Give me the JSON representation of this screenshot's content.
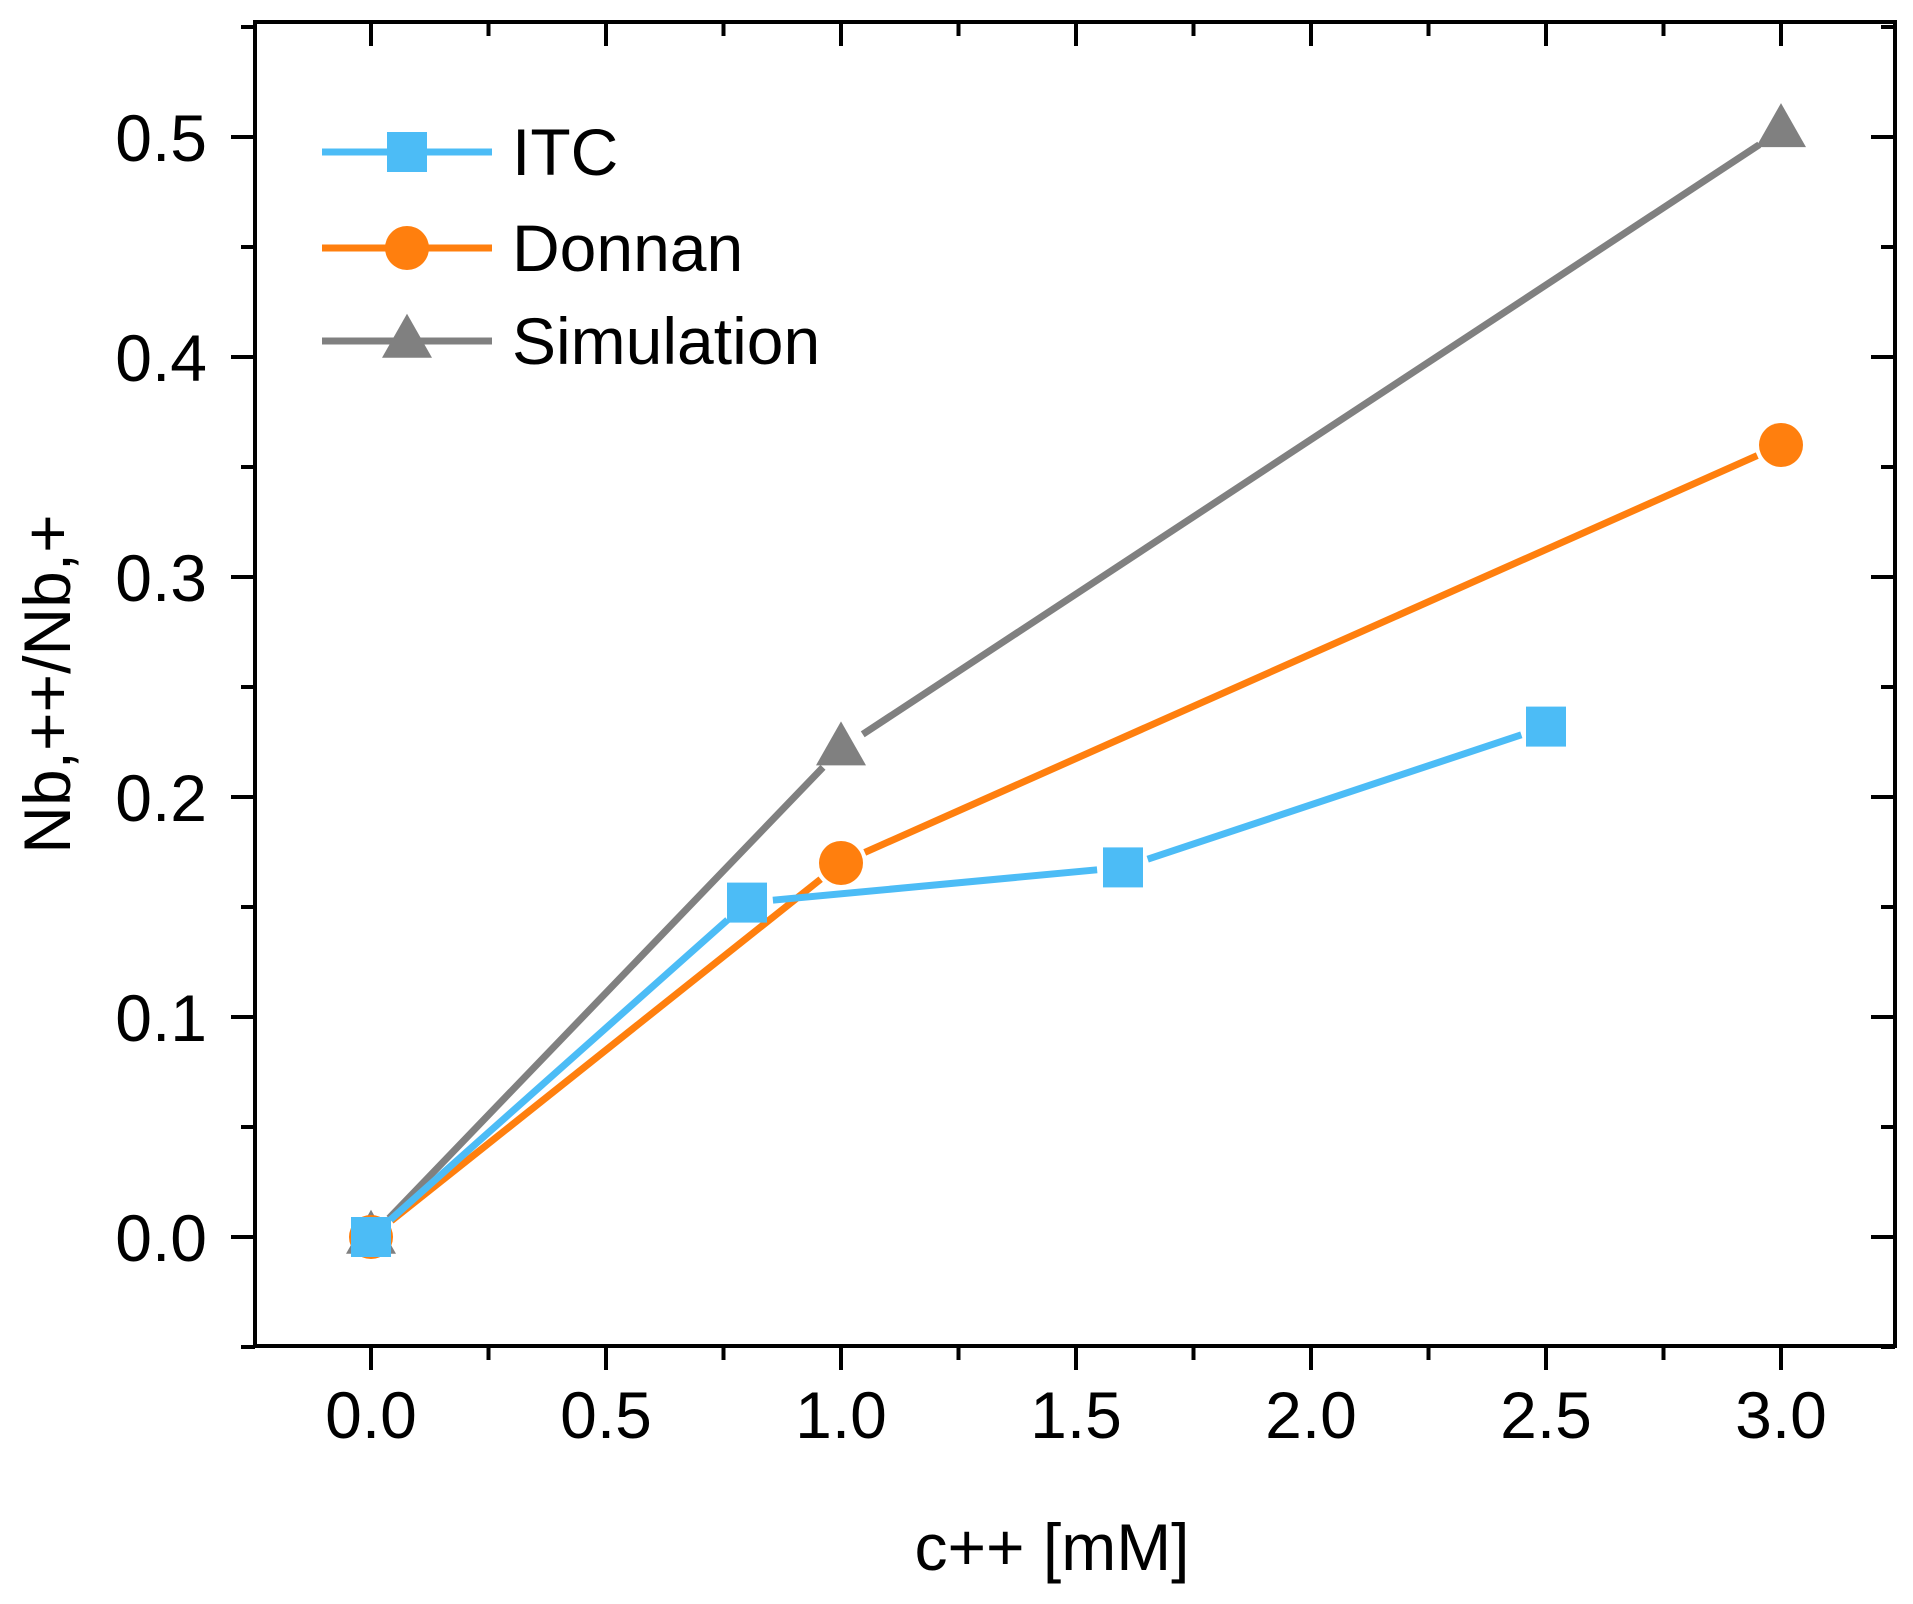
{
  "chart_data": {
    "type": "line",
    "title": "",
    "xlabel": "c++ [mM]",
    "ylabel": "Nb,++/Nb,+",
    "xlim": [
      -0.25,
      3.25
    ],
    "ylim": [
      -0.05,
      0.55
    ],
    "x_ticks": [
      0.0,
      0.5,
      1.0,
      1.5,
      2.0,
      2.5,
      3.0
    ],
    "x_tick_labels": [
      "0.0",
      "0.5",
      "1.0",
      "1.5",
      "2.0",
      "2.5",
      "3.0"
    ],
    "y_ticks": [
      0.0,
      0.1,
      0.2,
      0.3,
      0.4,
      0.5
    ],
    "y_tick_labels": [
      "0.0",
      "0.1",
      "0.2",
      "0.3",
      "0.4",
      "0.5"
    ],
    "grid": false,
    "legend_position": "top-left",
    "series": [
      {
        "name": "ITC",
        "color": "#4cbcf6",
        "marker": "square",
        "x": [
          0.0,
          0.8,
          1.6,
          2.5
        ],
        "y": [
          0.0,
          0.152,
          0.168,
          0.232
        ]
      },
      {
        "name": "Donnan",
        "color": "#ff7f0e",
        "marker": "circle",
        "x": [
          0.0,
          1.0,
          3.0
        ],
        "y": [
          0.0,
          0.17,
          0.36
        ]
      },
      {
        "name": "Simulation",
        "color": "#808080",
        "marker": "triangle",
        "x": [
          0.0,
          1.0,
          3.0
        ],
        "y": [
          0.0,
          0.222,
          0.503
        ]
      }
    ]
  }
}
